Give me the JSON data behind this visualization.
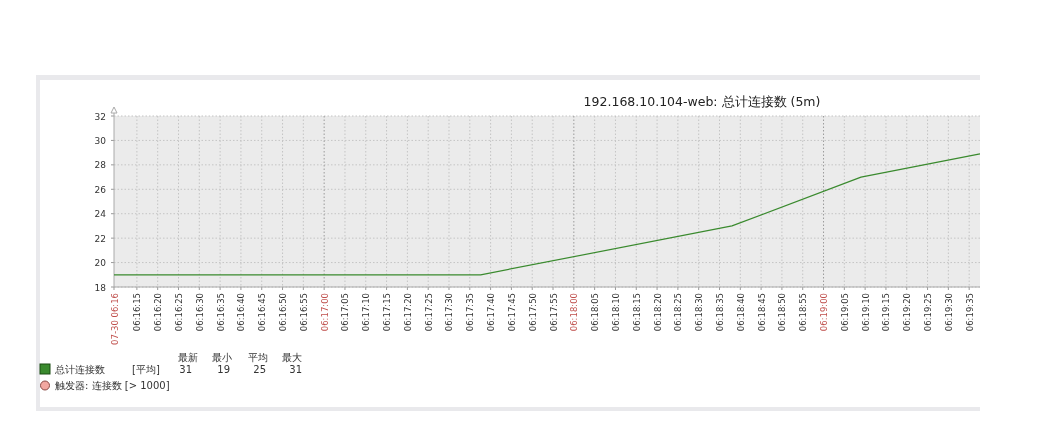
{
  "chart_data": {
    "type": "line",
    "title": "192.168.10.104-web: 总计连接数 (5m)",
    "series": [
      {
        "name": "总计连接数",
        "color": "#3a8a2e",
        "x": [
          6.269306,
          6.293778,
          6.310556,
          6.319167,
          6.327111
        ],
        "values": [
          19,
          19,
          23,
          27,
          28.9
        ]
      }
    ],
    "xlim": [
      6.269306,
      6.327111
    ],
    "xticks": [
      {
        "value": 6.269306,
        "label": "07-30 06:16"
      },
      {
        "value": 6.270833,
        "label": "06:16:15"
      },
      {
        "value": 6.272222,
        "label": "06:16:20"
      },
      {
        "value": 6.273611,
        "label": "06:16:25"
      },
      {
        "value": 6.275,
        "label": "06:16:30"
      },
      {
        "value": 6.276389,
        "label": "06:16:35"
      },
      {
        "value": 6.277778,
        "label": "06:16:40"
      },
      {
        "value": 6.279167,
        "label": "06:16:45"
      },
      {
        "value": 6.280556,
        "label": "06:16:50"
      },
      {
        "value": 6.281944,
        "label": "06:16:55"
      },
      {
        "value": 6.283333,
        "label": "06:17:00"
      },
      {
        "value": 6.284722,
        "label": "06:17:05"
      },
      {
        "value": 6.286111,
        "label": "06:17:10"
      },
      {
        "value": 6.2875,
        "label": "06:17:15"
      },
      {
        "value": 6.288889,
        "label": "06:17:20"
      },
      {
        "value": 6.290278,
        "label": "06:17:25"
      },
      {
        "value": 6.291667,
        "label": "06:17:30"
      },
      {
        "value": 6.293056,
        "label": "06:17:35"
      },
      {
        "value": 6.294444,
        "label": "06:17:40"
      },
      {
        "value": 6.295833,
        "label": "06:17:45"
      },
      {
        "value": 6.297222,
        "label": "06:17:50"
      },
      {
        "value": 6.298611,
        "label": "06:17:55"
      },
      {
        "value": 6.3,
        "label": "06:18:00"
      },
      {
        "value": 6.301389,
        "label": "06:18:05"
      },
      {
        "value": 6.302778,
        "label": "06:18:10"
      },
      {
        "value": 6.304167,
        "label": "06:18:15"
      },
      {
        "value": 6.305556,
        "label": "06:18:20"
      },
      {
        "value": 6.306944,
        "label": "06:18:25"
      },
      {
        "value": 6.308333,
        "label": "06:18:30"
      },
      {
        "value": 6.309722,
        "label": "06:18:35"
      },
      {
        "value": 6.311111,
        "label": "06:18:40"
      },
      {
        "value": 6.3125,
        "label": "06:18:45"
      },
      {
        "value": 6.313889,
        "label": "06:18:50"
      },
      {
        "value": 6.315278,
        "label": "06:18:55"
      },
      {
        "value": 6.316667,
        "label": "06:19:00"
      },
      {
        "value": 6.318056,
        "label": "06:19:05"
      },
      {
        "value": 6.319444,
        "label": "06:19:10"
      },
      {
        "value": 6.320833,
        "label": "06:19:15"
      },
      {
        "value": 6.322222,
        "label": "06:19:20"
      },
      {
        "value": 6.323611,
        "label": "06:19:25"
      },
      {
        "value": 6.325,
        "label": "06:19:30"
      },
      {
        "value": 6.326389,
        "label": "06:19:35"
      }
    ],
    "ylim": [
      18,
      32
    ],
    "yticks": [
      18,
      20,
      22,
      24,
      26,
      28,
      30,
      32
    ],
    "grid": true,
    "legend": "bottom left",
    "annotations": [
      "[平均]",
      "最新",
      "最小",
      "平均",
      "最大",
      "31",
      "19",
      "25",
      "31",
      "触发器: 连接数 [> 1000]"
    ]
  }
}
